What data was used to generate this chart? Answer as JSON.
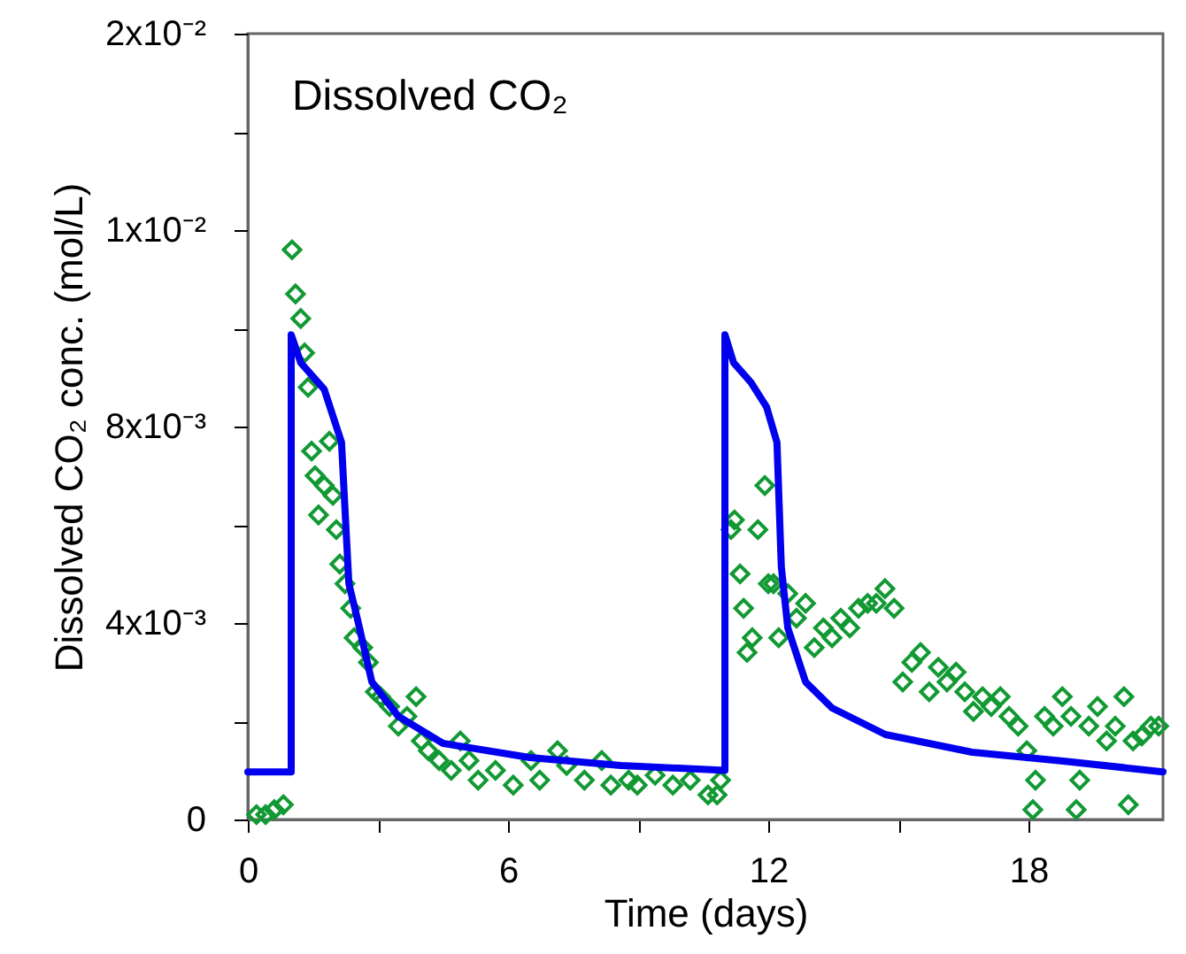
{
  "chart_data": {
    "type": "scatter",
    "title": "Dissolved CO₂",
    "xlabel": "Time (days)",
    "ylabel": "Dissolved CO₂ conc. (mol/L)",
    "xlim": [
      0,
      21.1
    ],
    "xticks": [
      0,
      {
        "value": 3,
        "label": null
      },
      6,
      {
        "value": 9,
        "label": null
      },
      12,
      {
        "value": 15,
        "label": null
      },
      18
    ],
    "ylim": [
      0,
      0.016
    ],
    "yticks": [
      {
        "value": 0,
        "label": "0"
      },
      {
        "value": 0.002,
        "label": null
      },
      {
        "value": 0.004,
        "label": "4x10⁻³"
      },
      {
        "value": 0.006,
        "label": null
      },
      {
        "value": 0.008,
        "label": "8x10⁻³"
      },
      {
        "value": 0.01,
        "label": null
      },
      {
        "value": 0.012,
        "label": "1x10⁻²"
      },
      {
        "value": 0.014,
        "label": null
      },
      {
        "value": 0.016,
        "label": "2x10⁻²"
      }
    ],
    "grid": false,
    "series": [
      {
        "color": "#119933",
        "marker": "diamond",
        "x": [
          0.2,
          0.41,
          0.61,
          0.82,
          1.02,
          1.1,
          1.22,
          1.31,
          1.39,
          1.47,
          1.55,
          1.63,
          1.76,
          1.88,
          1.96,
          2.04,
          2.12,
          2.24,
          2.37,
          2.45,
          2.65,
          2.78,
          2.94,
          3.06,
          3.27,
          3.47,
          3.67,
          3.88,
          4.0,
          4.16,
          4.41,
          4.69,
          4.9,
          5.1,
          5.31,
          5.71,
          6.12,
          6.53,
          6.73,
          7.14,
          7.35,
          7.76,
          8.16,
          8.37,
          8.78,
          8.98,
          9.39,
          9.8,
          10.2,
          10.61,
          10.9,
          10.82,
          11.14,
          11.22,
          11.35,
          11.43,
          11.51,
          11.63,
          11.76,
          11.92,
          12.0,
          12.12,
          12.24,
          12.45,
          12.65,
          12.86,
          13.06,
          13.27,
          13.47,
          13.67,
          13.88,
          14.08,
          14.29,
          14.49,
          14.69,
          14.9,
          15.1,
          15.31,
          15.51,
          15.71,
          15.92,
          16.12,
          16.33,
          16.53,
          16.73,
          16.94,
          17.14,
          17.35,
          17.55,
          17.76,
          17.96,
          18.16,
          18.37,
          18.57,
          18.78,
          18.98,
          19.18,
          19.39,
          19.59,
          19.8,
          20.0,
          20.2,
          20.41,
          20.61,
          20.82,
          21.0,
          18.1,
          19.1,
          20.3
        ],
        "values": [
          0.0001,
          0.0001,
          0.0002,
          0.0003,
          0.0116,
          0.0107,
          0.0102,
          0.0095,
          0.0088,
          0.0075,
          0.007,
          0.0062,
          0.0068,
          0.0077,
          0.0066,
          0.0059,
          0.0052,
          0.0048,
          0.0043,
          0.0037,
          0.0035,
          0.0032,
          0.0026,
          0.0025,
          0.0023,
          0.0019,
          0.0021,
          0.0025,
          0.0016,
          0.0014,
          0.0012,
          0.001,
          0.0016,
          0.0012,
          0.0008,
          0.001,
          0.0007,
          0.0012,
          0.0008,
          0.0014,
          0.0011,
          0.0008,
          0.0012,
          0.0007,
          0.0008,
          0.0007,
          0.0009,
          0.0007,
          0.0008,
          0.0005,
          0.0008,
          0.0005,
          0.0059,
          0.0061,
          0.005,
          0.0043,
          0.0034,
          0.0037,
          0.0059,
          0.0068,
          0.0048,
          0.0048,
          0.0037,
          0.0046,
          0.0041,
          0.0044,
          0.0035,
          0.0039,
          0.0037,
          0.0041,
          0.0039,
          0.0043,
          0.0044,
          0.0044,
          0.0047,
          0.0043,
          0.0028,
          0.0032,
          0.0034,
          0.0026,
          0.0031,
          0.0028,
          0.003,
          0.0026,
          0.0022,
          0.0025,
          0.0023,
          0.0025,
          0.0021,
          0.0019,
          0.0014,
          0.0008,
          0.0021,
          0.0019,
          0.0025,
          0.0021,
          0.0008,
          0.0019,
          0.0023,
          0.0016,
          0.0019,
          0.0025,
          0.0016,
          0.0017,
          0.0019,
          0.0019,
          0.0002,
          0.0002,
          0.0003
        ]
      },
      {
        "type": "line",
        "color": "#0000ee",
        "marker": "none",
        "line_style": "solid",
        "x": [
          0,
          1.0,
          1.0,
          1.22,
          1.76,
          2.16,
          2.33,
          2.53,
          2.86,
          3.47,
          4.5,
          6.5,
          8.6,
          11.0,
          11.0,
          11.2,
          11.6,
          11.96,
          12.2,
          12.3,
          12.45,
          12.86,
          13.47,
          14.7,
          16.7,
          18.8,
          21.1
        ],
        "values": [
          0.00097,
          0.00097,
          0.00987,
          0.0093,
          0.00876,
          0.00768,
          0.0048,
          0.00407,
          0.0028,
          0.0021,
          0.00155,
          0.00126,
          0.0011,
          0.001,
          0.00987,
          0.0093,
          0.0089,
          0.0084,
          0.00768,
          0.00515,
          0.0039,
          0.0028,
          0.00227,
          0.00173,
          0.00137,
          0.00119,
          0.00097
        ]
      }
    ]
  }
}
